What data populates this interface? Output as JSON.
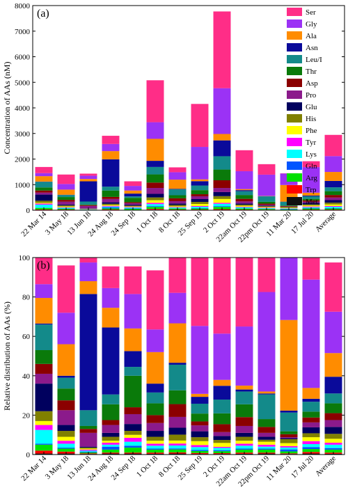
{
  "categories": [
    "22 Mar 14",
    "3 May 18",
    "13 Jun 18",
    "24 Aug 18",
    "24 Sep 18",
    "1 Oct 18",
    "8 Oct 18",
    "25 Sep 19",
    "2 Oct 19",
    "22am Oct 19",
    "22pm Oct 19",
    "11 Mar 20",
    "17 Jul 20",
    "Average"
  ],
  "species": [
    "Ser",
    "Gly",
    "Ala",
    "Asn",
    "Leu/I",
    "Thr",
    "Asp",
    "Pro",
    "Glu",
    "His",
    "Phe",
    "Tyr",
    "Lys",
    "Gln",
    "Arg",
    "Trp",
    "Met"
  ],
  "colors": {
    "Ser": "#ff2d87",
    "Gly": "#9b32f5",
    "Ala": "#ff8c00",
    "Asn": "#0a0a9a",
    "Leu/I": "#138a8a",
    "Thr": "#0a7a0a",
    "Asp": "#8b0000",
    "Pro": "#8b1a8b",
    "Glu": "#00005e",
    "His": "#808000",
    "Phe": "#ffff00",
    "Tyr": "#ff00ff",
    "Lys": "#00ffff",
    "Gln": "#0055ff",
    "Arg": "#00e000",
    "Trp": "#ff0000",
    "Met": "#101010"
  },
  "chart_data": [
    {
      "panel_label": "(a)",
      "type": "bar",
      "stacked": true,
      "ylabel": "Concentration of AAs (nM)",
      "ylim": [
        0,
        8000
      ],
      "yticks": [
        0,
        1000,
        2000,
        3000,
        4000,
        5000,
        6000,
        7000,
        8000
      ],
      "legend_position": "top-right",
      "series": [
        {
          "name": "Met",
          "values": [
            10,
            10,
            5,
            10,
            5,
            20,
            10,
            10,
            15,
            10,
            10,
            5,
            10,
            10
          ]
        },
        {
          "name": "Trp",
          "values": [
            20,
            15,
            5,
            20,
            10,
            30,
            15,
            15,
            25,
            15,
            10,
            5,
            15,
            15
          ]
        },
        {
          "name": "Arg",
          "values": [
            60,
            30,
            10,
            40,
            40,
            80,
            40,
            40,
            90,
            40,
            30,
            20,
            40,
            40
          ]
        },
        {
          "name": "Gln",
          "values": [
            10,
            10,
            5,
            40,
            20,
            30,
            10,
            20,
            30,
            10,
            10,
            20,
            20,
            20
          ]
        },
        {
          "name": "Lys",
          "values": [
            120,
            30,
            10,
            30,
            30,
            80,
            30,
            50,
            90,
            40,
            20,
            15,
            30,
            50
          ]
        },
        {
          "name": "Tyr",
          "values": [
            40,
            20,
            5,
            30,
            20,
            50,
            20,
            30,
            40,
            20,
            20,
            10,
            30,
            30
          ]
        },
        {
          "name": "Phe",
          "values": [
            30,
            30,
            10,
            30,
            20,
            100,
            30,
            80,
            150,
            40,
            30,
            20,
            40,
            60
          ]
        },
        {
          "name": "His",
          "values": [
            80,
            40,
            10,
            50,
            30,
            110,
            50,
            80,
            110,
            40,
            20,
            30,
            40,
            70
          ]
        },
        {
          "name": "Glu",
          "values": [
            240,
            40,
            10,
            60,
            40,
            140,
            60,
            110,
            160,
            50,
            30,
            10,
            60,
            100
          ]
        },
        {
          "name": "Pro",
          "values": [
            80,
            110,
            100,
            130,
            60,
            230,
            90,
            110,
            160,
            80,
            30,
            10,
            50,
            100
          ]
        },
        {
          "name": "Asp",
          "values": [
            80,
            70,
            30,
            80,
            40,
            210,
            110,
            80,
            300,
            100,
            50,
            20,
            50,
            100
          ]
        },
        {
          "name": "Thr",
          "values": [
            120,
            110,
            20,
            250,
            170,
            320,
            120,
            160,
            420,
            150,
            70,
            20,
            60,
            150
          ]
        },
        {
          "name": "Leu/I",
          "values": [
            220,
            80,
            120,
            150,
            55,
            290,
            230,
            180,
            520,
            150,
            210,
            140,
            100,
            150
          ]
        },
        {
          "name": "Asn",
          "values": [
            10,
            10,
            790,
            1070,
            110,
            240,
            20,
            170,
            620,
            40,
            10,
            10,
            30,
            250
          ]
        },
        {
          "name": "Ala",
          "values": [
            210,
            200,
            90,
            320,
            120,
            860,
            360,
            70,
            250,
            40,
            10,
            650,
            110,
            350
          ]
        },
        {
          "name": "Gly",
          "values": [
            120,
            220,
            130,
            280,
            180,
            650,
            290,
            1270,
            1790,
            700,
            830,
            450,
            1000,
            620
          ]
        },
        {
          "name": "Ser",
          "values": [
            240,
            370,
            80,
            320,
            180,
            1640,
            190,
            1680,
            3000,
            820,
            410,
            10,
            230,
            830
          ]
        }
      ]
    },
    {
      "panel_label": "(b)",
      "type": "bar",
      "stacked": true,
      "ylabel": "Relative distribution of AAs (%)",
      "ylim": [
        0,
        100
      ],
      "yticks": [
        0,
        20,
        40,
        60,
        80,
        100
      ],
      "series": [
        {
          "name": "Met",
          "values": [
            0.5,
            0.5,
            0.3,
            0.5,
            0.5,
            0.4,
            0.5,
            0.3,
            0.3,
            0.4,
            0.5,
            0.3,
            0.5,
            0.4
          ]
        },
        {
          "name": "Trp",
          "values": [
            1.5,
            1,
            0.3,
            0.5,
            0.5,
            0.6,
            0.6,
            0.5,
            0.4,
            0.6,
            0.5,
            0.3,
            0.8,
            0.6
          ]
        },
        {
          "name": "Arg",
          "values": [
            3,
            1.5,
            0.5,
            1.5,
            2.5,
            1.5,
            1.5,
            1,
            1,
            1.5,
            1.5,
            1,
            1.5,
            1.5
          ]
        },
        {
          "name": "Gln",
          "values": [
            0.5,
            0.5,
            0.4,
            1.5,
            1,
            0.5,
            0.5,
            0.5,
            0.5,
            0.5,
            0.5,
            1,
            1,
            0.8
          ]
        },
        {
          "name": "Lys",
          "values": [
            7,
            2,
            0.5,
            1,
            2,
            1.5,
            1.5,
            1.5,
            1.2,
            1.5,
            1,
            1,
            1.5,
            1.7
          ]
        },
        {
          "name": "Tyr",
          "values": [
            2.5,
            1.5,
            0.5,
            1,
            2,
            1,
            1,
            1,
            0.5,
            1,
            1,
            0.7,
            1.5,
            1
          ]
        },
        {
          "name": "Phe",
          "values": [
            2,
            2,
            0.5,
            1,
            1.5,
            1.5,
            1.5,
            2,
            2,
            1.5,
            1.5,
            1.5,
            2,
            2
          ]
        },
        {
          "name": "His",
          "values": [
            5,
            3,
            0.5,
            2,
            2,
            2,
            3,
            2,
            1.5,
            2,
            1,
            2,
            2,
            2.5
          ]
        },
        {
          "name": "Glu",
          "values": [
            14,
            3,
            0.5,
            2,
            3.5,
            3,
            3.5,
            3,
            2,
            2,
            1.5,
            0.5,
            3,
            3.5
          ]
        },
        {
          "name": "Pro",
          "values": [
            5,
            7.5,
            7,
            4,
            5,
            4,
            5.5,
            3,
            2,
            3.5,
            2,
            0.5,
            2.5,
            3.5
          ]
        },
        {
          "name": "Asp",
          "values": [
            5,
            5,
            2,
            2.5,
            3.5,
            4,
            6.5,
            2,
            4,
            4.5,
            3,
            1.5,
            2.5,
            3.5
          ]
        },
        {
          "name": "Thr",
          "values": [
            7,
            6,
            1.5,
            8,
            16,
            6,
            7,
            4,
            5.5,
            6.5,
            4,
            1.5,
            3,
            5
          ]
        },
        {
          "name": "Leu/I",
          "values": [
            13,
            5.5,
            8,
            5,
            4.5,
            5.5,
            13,
            5,
            7,
            6.5,
            12.5,
            9.5,
            5,
            5
          ]
        },
        {
          "name": "Asn",
          "values": [
            0.5,
            1,
            59,
            34,
            8,
            4.5,
            1,
            3.5,
            7,
            1,
            0.5,
            1,
            1.5,
            8.5
          ]
        },
        {
          "name": "Ala",
          "values": [
            13,
            16,
            6.5,
            10,
            11.5,
            16,
            20,
            1.5,
            3,
            2,
            1,
            46,
            5.5,
            12
          ]
        },
        {
          "name": "Gly",
          "values": [
            7,
            16,
            9.5,
            10,
            17.5,
            11.5,
            15.5,
            34.5,
            23.5,
            30,
            50.5,
            32,
            55,
            21
          ]
        },
        {
          "name": "Ser",
          "values": [
            14,
            24,
            6,
            11,
            14,
            30,
            21,
            44,
            38.5,
            35,
            26,
            0.5,
            12.5,
            25
          ]
        }
      ]
    }
  ]
}
